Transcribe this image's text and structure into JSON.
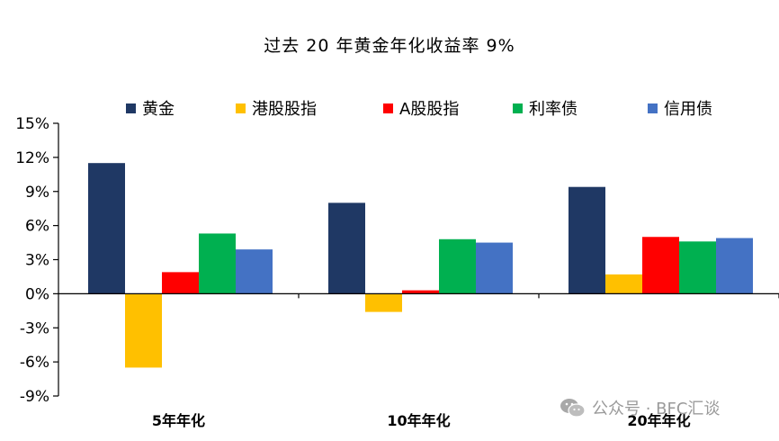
{
  "chart_data": {
    "type": "bar",
    "title": "过去 20 年黄金年化收益率 9%",
    "categories": [
      "5年年化",
      "10年年化",
      "20年年化"
    ],
    "series": [
      {
        "name": "黄金",
        "color": "#1F3864",
        "values": [
          11.5,
          8.0,
          9.4
        ]
      },
      {
        "name": "港股股指",
        "color": "#FFC000",
        "values": [
          -6.5,
          -1.6,
          1.7
        ]
      },
      {
        "name": "A股股指",
        "color": "#FF0000",
        "values": [
          1.9,
          0.3,
          5.0
        ]
      },
      {
        "name": "利率债",
        "color": "#00B050",
        "values": [
          5.3,
          4.8,
          4.6
        ]
      },
      {
        "name": "信用债",
        "color": "#4472C4",
        "values": [
          3.9,
          4.5,
          4.9
        ]
      }
    ],
    "yticks": [
      "15%",
      "12%",
      "9%",
      "6%",
      "3%",
      "0%",
      "-3%",
      "-6%",
      "-9%"
    ],
    "ylim": [
      -9,
      15
    ],
    "ystep": 3,
    "xlabel": "",
    "ylabel": "",
    "grid": false,
    "legend_position": "top"
  },
  "watermark": {
    "icon": "wechat-icon",
    "text": "公众号 · BFC汇谈"
  }
}
